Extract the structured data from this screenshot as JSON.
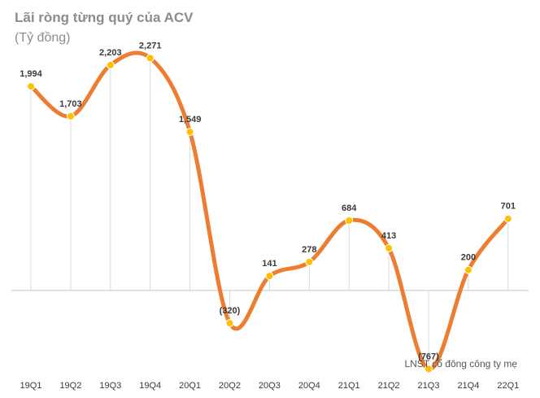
{
  "header": {
    "title": "Lãi ròng từng quý của ACV",
    "subtitle": "(Tỷ đồng)"
  },
  "chart_data": {
    "type": "line",
    "title": "Lãi ròng từng quý của ACV",
    "subtitle": "(Tỷ đồng)",
    "categories": [
      "19Q1",
      "19Q2",
      "19Q3",
      "19Q4",
      "20Q1",
      "20Q2",
      "20Q3",
      "20Q4",
      "21Q1",
      "21Q2",
      "21Q3",
      "21Q4",
      "22Q1"
    ],
    "series": [
      {
        "name": "LNST cổ đông công ty mẹ",
        "values": [
          1994,
          1703,
          2203,
          2271,
          1549,
          -320,
          141,
          278,
          684,
          413,
          -767,
          200,
          701
        ],
        "labels": [
          "1,994",
          "1,703",
          "2,203",
          "2,271",
          "1,549",
          "(320)",
          "141",
          "278",
          "684",
          "413",
          "(767)",
          "200",
          "701"
        ],
        "color": "#ED7D31",
        "marker_color": "#FFC000"
      }
    ],
    "ylim": [
      -900,
      2600
    ],
    "grid": false,
    "smooth": true,
    "legend": "bottom-right",
    "xlabel": "",
    "ylabel": ""
  }
}
